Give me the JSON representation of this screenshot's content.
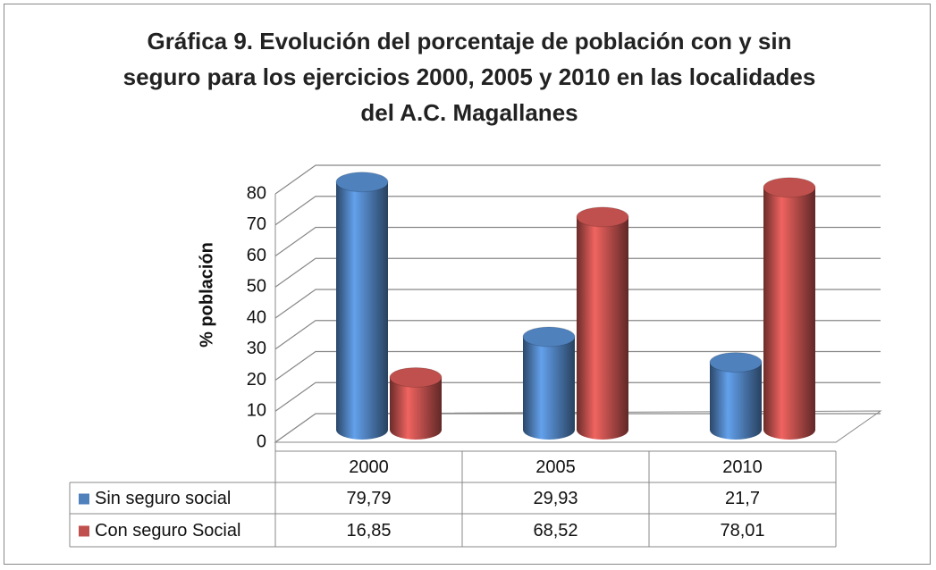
{
  "chart_data": {
    "type": "bar3d",
    "title": "Gráfica 9. Evolución del porcentaje de población con y sin seguro para los ejercicios  2000, 2005 y 2010 en las localidades del A.C. Magallanes",
    "y_label": "% población",
    "categories": [
      "2000",
      "2005",
      "2010"
    ],
    "series": [
      {
        "name": "Sin seguro social",
        "color": "#4f81bd",
        "values": [
          79.79,
          29.93,
          21.7
        ],
        "value_labels": [
          "79,79",
          "29,93",
          "21,7"
        ]
      },
      {
        "name": "Con seguro Social",
        "color": "#c0504d",
        "values": [
          16.85,
          68.52,
          78.01
        ],
        "value_labels": [
          "16,85",
          "68,52",
          "78,01"
        ]
      }
    ],
    "ylim": [
      0,
      80
    ],
    "yticks": [
      0,
      10,
      20,
      30,
      40,
      50,
      60,
      70,
      80
    ],
    "grid": true
  }
}
